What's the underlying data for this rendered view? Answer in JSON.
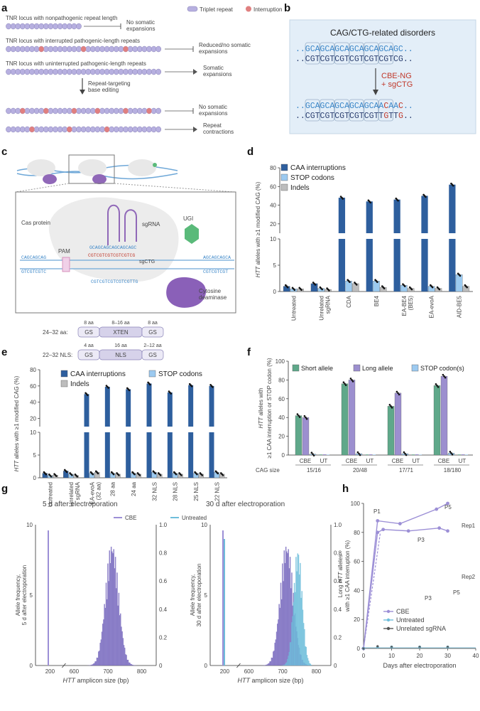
{
  "panel_a": {
    "letter": "a",
    "legend": {
      "triplet": "Triplet repeat",
      "interruption": "Interruption"
    },
    "rows": [
      {
        "label": "TNR locus with nonpathogenic repeat length",
        "outcome": "No somatic\nexpansions",
        "outcome_color": "#4a9a4a"
      },
      {
        "label": "TNR locus with interrupted pathogenic-length repeats",
        "outcome": "Reduced/no somatic\nexpansions",
        "outcome_color": "#d39a3a"
      },
      {
        "label": "TNR locus with uninterrupted pathogenic-length repeats",
        "outcome": "Somatic\nexpansions",
        "outcome_color": "#8a7fc4"
      }
    ],
    "editing_label": "Repeat-targeting\nbase editing",
    "edited_outcomes": [
      {
        "text": "No somatic\nexpansions",
        "color": "#4a9a4a"
      },
      {
        "text": "Repeat\ncontractions",
        "color": "#4a9a4a"
      }
    ]
  },
  "panel_b": {
    "letter": "b",
    "title": "CAG/CTG-related disorders",
    "top1": "..GCAGCAGCAGCAGCAGCAGC..",
    "top2": "..CGTCGTCGTCGTCGTCGTCG..",
    "editor": "CBE-NG\n+ sgCTG",
    "bot1": "..GCAGCAGCAGCAGCAACAAC..",
    "bot2": "..CGTCGTCGTCGTCGTTGTTG.."
  },
  "panel_c": {
    "letter": "c",
    "cas": "Cas protein",
    "sgrna": "sgRNA",
    "ugi": "UGI",
    "pam": "PAM",
    "sgctg": "sgCTG",
    "deaminase": "Cytosine\ndeaminase",
    "seq_top": "GCAGCAGCAGCAGCAGC",
    "seq_mid": "CGTCGTCGTCGTCGTCG",
    "seq_bot": "CGTCGTCGTCGTCGTTG",
    "left_top": "CAGCAGCAG",
    "left_bot": "GTCGTCGTC",
    "right_top": "AGCAGCAGCA",
    "right_bot": "CGTCGTCGT"
  },
  "linker": {
    "row1": {
      "label": "24–32 aa:",
      "segs": [
        "GS",
        "XTEN",
        "GS"
      ],
      "tops": [
        "8 aa",
        "8–16 aa",
        "8 aa"
      ]
    },
    "row2": {
      "label": "22–32 NLS:",
      "segs": [
        "GS",
        "NLS",
        "GS"
      ],
      "tops": [
        "4 aa",
        "16 aa",
        "2–12 aa"
      ]
    }
  },
  "panel_d": {
    "letter": "d",
    "ylabel_pre": "HTT",
    "ylabel_post": " alleles with ≥1 modified CAG (%)",
    "legend": [
      "CAA interruptions",
      "STOP codons",
      "Indels"
    ],
    "colors": [
      "#2e5f9e",
      "#9ccaf0",
      "#bdbdbd"
    ],
    "upper_ticks": [
      "20",
      "40",
      "60",
      "80"
    ],
    "lower_ticks": [
      "0",
      "5",
      "10"
    ],
    "categories": [
      "Untreated",
      "Unrelated\nsgRNA",
      "CDA",
      "BE4",
      "EA-BE4\n(BE5)",
      "EA-evoA",
      "AID-BE5"
    ]
  },
  "panel_e": {
    "letter": "e",
    "ylabel_pre": "HTT",
    "ylabel_post": " alleles with ≥1 modified CAG (%)",
    "legend": [
      "CAA interruptions",
      "STOP codons",
      "Indels"
    ],
    "upper_ticks": [
      "20",
      "40",
      "60",
      "80"
    ],
    "lower_ticks": [
      "0",
      "5",
      "10"
    ],
    "categories": [
      "Untreated",
      "Unrelated\nsgRNA",
      "EA-evoA\n(32 aa)",
      "28 aa",
      "24 aa",
      "32 NLS",
      "28 NLS",
      "25 NLS",
      "22 NLS"
    ]
  },
  "panel_f": {
    "letter": "f",
    "ylabel_pre": "HTT",
    "ylabel_post": " alleles with",
    "ylabel2": "≥1 CAA interruption or STOP codon (%)",
    "legend": [
      "Short allele",
      "Long allele",
      "STOP codon(s)"
    ],
    "colors": [
      "#5fa88a",
      "#9c8fcf",
      "#9ccaf0"
    ],
    "ticks": [
      "0",
      "20",
      "40",
      "60",
      "80",
      "100"
    ],
    "cag_label": "CAG size",
    "groups": [
      {
        "cbe": "CBE",
        "ut": "UT",
        "size": "15/16"
      },
      {
        "cbe": "CBE",
        "ut": "UT",
        "size": "20/48"
      },
      {
        "cbe": "CBE",
        "ut": "UT",
        "size": "17/71"
      },
      {
        "cbe": "CBE",
        "ut": "UT",
        "size": "18/180"
      }
    ]
  },
  "panel_g": {
    "letter": "g",
    "left_title": "5 d after electroporation",
    "right_title": "30 d after electroporation",
    "legend": [
      "CBE",
      "Untreated"
    ],
    "ylabel_left": "Allele frequency,",
    "ylabel_left2": "5 d after electroporation",
    "ylabel_right": "Allele frequency,",
    "ylabel_right2": "30 d after electroporation",
    "yticks_l": [
      "0",
      "5",
      "10"
    ],
    "yticks_r": [
      "0",
      "0.2",
      "0.4",
      "0.6",
      "0.8",
      "1.0"
    ],
    "xticks": [
      "200",
      "600",
      "700",
      "800"
    ],
    "xlabel_pre": "HTT",
    "xlabel_post": " amplicon size (bp)"
  },
  "panel_h": {
    "letter": "h",
    "ylabel_pre": "Long ",
    "ylabel_it": "HTT",
    "ylabel_post": " alleles",
    "ylabel2": "with ≥1 CAA interruption (%)",
    "xlabel": "Days after electroporation",
    "yticks": [
      "0",
      "20",
      "40",
      "60",
      "80",
      "100"
    ],
    "xticks": [
      "0",
      "10",
      "20",
      "30",
      "40"
    ],
    "labels": [
      "P1",
      "P3",
      "P5",
      "Rep1",
      "P3",
      "P5",
      "Rep2"
    ],
    "legend": [
      "CBE",
      "Untreated",
      "Unrelated sgRNA"
    ],
    "colors": [
      "#9c8fd6",
      "#6fbedb",
      "#555555"
    ]
  }
}
